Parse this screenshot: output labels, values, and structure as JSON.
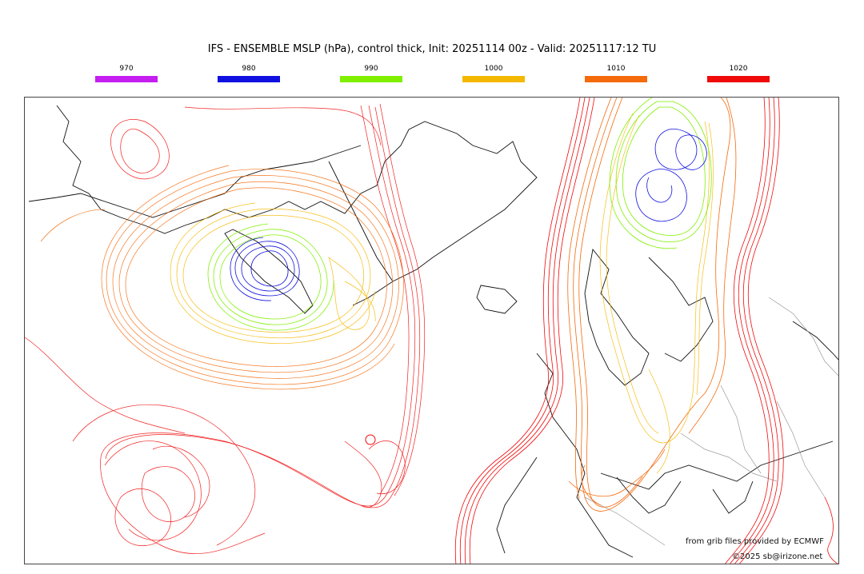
{
  "title": "IFS - ENSEMBLE MSLP (hPa), control thick, Init: 20251114 00z - Valid: 20251117:12 TU",
  "legend": [
    {
      "label": "970",
      "color": "#c41ef0"
    },
    {
      "label": "980",
      "color": "#1010e0"
    },
    {
      "label": "990",
      "color": "#80f000"
    },
    {
      "label": "1000",
      "color": "#f5b800"
    },
    {
      "label": "1010",
      "color": "#f46a0c"
    },
    {
      "label": "1020",
      "color": "#f00a0a"
    }
  ],
  "credits": {
    "source": "from grib files provided by ECMWF",
    "copyright": "©2025 sb@irizone.net"
  }
}
